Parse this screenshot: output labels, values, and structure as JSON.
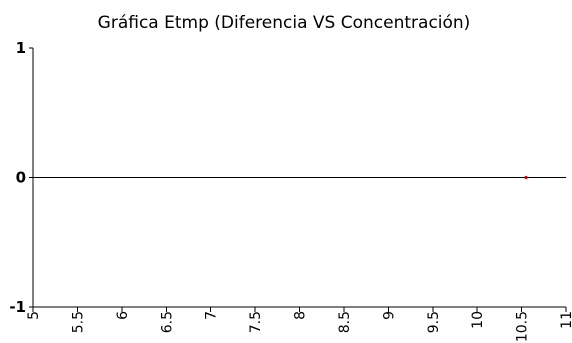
{
  "chart_data": {
    "type": "scatter",
    "title": "Gráfica Etmp (Diferencia VS Concentración)",
    "xlabel": "",
    "ylabel": "",
    "xlim": [
      5,
      11
    ],
    "ylim": [
      -1,
      1
    ],
    "x_ticks": [
      "5",
      "5.5",
      "6",
      "6.5",
      "7",
      "7.5",
      "8",
      "8.5",
      "9",
      "9.5",
      "10",
      "10.5",
      "11"
    ],
    "y_ticks": [
      "1",
      "0",
      "-1"
    ],
    "reference_line_y": 0,
    "grid": false,
    "series": [
      {
        "values": [
          {
            "x": 10.55,
            "y": 0
          }
        ],
        "color": "#cc0000"
      }
    ],
    "colors": {
      "axis": "#000000",
      "point": "#cc0000"
    }
  }
}
